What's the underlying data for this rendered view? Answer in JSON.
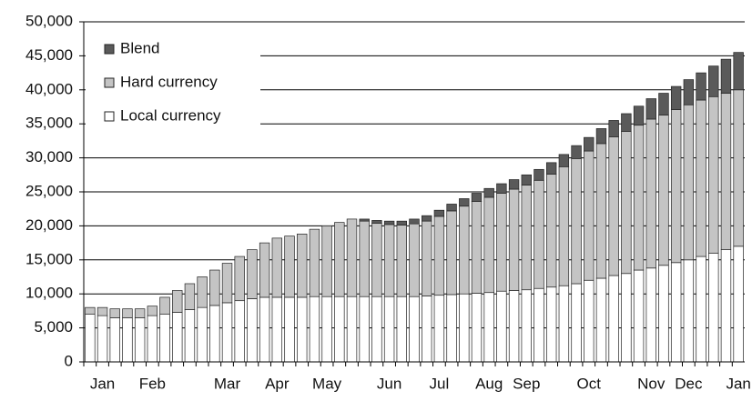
{
  "chart_data": {
    "type": "stacked-bar",
    "categories": [
      null,
      "Jan",
      null,
      null,
      null,
      "Feb",
      null,
      null,
      null,
      null,
      null,
      "Mar",
      null,
      null,
      null,
      "Apr",
      null,
      null,
      null,
      "May",
      null,
      null,
      null,
      null,
      "Jun",
      null,
      null,
      null,
      "Jul",
      null,
      null,
      null,
      "Aug",
      null,
      null,
      "Sep",
      null,
      null,
      null,
      null,
      "Oct",
      null,
      null,
      null,
      null,
      "Nov",
      null,
      null,
      "Dec",
      null,
      null,
      null,
      "Jan"
    ],
    "series": [
      {
        "name": "Local currency",
        "color": "#ffffff",
        "values": [
          7000,
          6800,
          6500,
          6500,
          6500,
          6800,
          7000,
          7300,
          7700,
          8000,
          8300,
          8700,
          9000,
          9300,
          9500,
          9500,
          9500,
          9500,
          9600,
          9600,
          9600,
          9600,
          9600,
          9600,
          9600,
          9600,
          9600,
          9700,
          9800,
          9900,
          10000,
          10100,
          10200,
          10400,
          10500,
          10600,
          10800,
          11000,
          11200,
          11500,
          12000,
          12300,
          12700,
          13000,
          13500,
          13800,
          14200,
          14600,
          15000,
          15500,
          16000,
          16500,
          17000
        ]
      },
      {
        "name": "Hard currency",
        "color": "#c4c4c4",
        "values": [
          1000,
          1200,
          1300,
          1300,
          1300,
          1400,
          2500,
          3200,
          3800,
          4500,
          5200,
          5800,
          6500,
          7200,
          8000,
          8700,
          9000,
          9300,
          9900,
          10400,
          10900,
          11400,
          11100,
          10800,
          10600,
          10500,
          10700,
          11000,
          11600,
          12300,
          12900,
          13500,
          14000,
          14400,
          14900,
          15400,
          15900,
          16600,
          17500,
          18400,
          19000,
          19800,
          20400,
          20900,
          21300,
          21900,
          22100,
          22500,
          22800,
          23000,
          23000,
          23000,
          23000
        ]
      },
      {
        "name": "Blend",
        "color": "#5a5a5a",
        "values": [
          0,
          0,
          0,
          0,
          0,
          0,
          0,
          0,
          0,
          0,
          0,
          0,
          0,
          0,
          0,
          0,
          0,
          0,
          0,
          0,
          0,
          0,
          300,
          400,
          500,
          600,
          700,
          800,
          900,
          1000,
          1100,
          1200,
          1300,
          1400,
          1400,
          1500,
          1600,
          1700,
          1800,
          1900,
          2000,
          2200,
          2400,
          2600,
          2800,
          3000,
          3200,
          3400,
          3700,
          4000,
          4500,
          5000,
          5500
        ]
      }
    ],
    "ylim": [
      0,
      50000
    ],
    "yticks": [
      0,
      {
        "value": 5000,
        "label": "5,000"
      },
      {
        "value": 10000,
        "label": "10,000"
      },
      {
        "value": 15000,
        "label": "15,000"
      },
      {
        "value": 20000,
        "label": "20,000"
      },
      {
        "value": 25000,
        "label": "25,000"
      },
      {
        "value": 30000,
        "label": "30,000"
      },
      {
        "value": 35000,
        "label": "35,000"
      },
      {
        "value": 40000,
        "label": "40,000"
      },
      {
        "value": 45000,
        "label": "45,000"
      },
      {
        "value": 50000,
        "label": "50,000"
      }
    ],
    "grid": true,
    "legend": "upper left"
  }
}
